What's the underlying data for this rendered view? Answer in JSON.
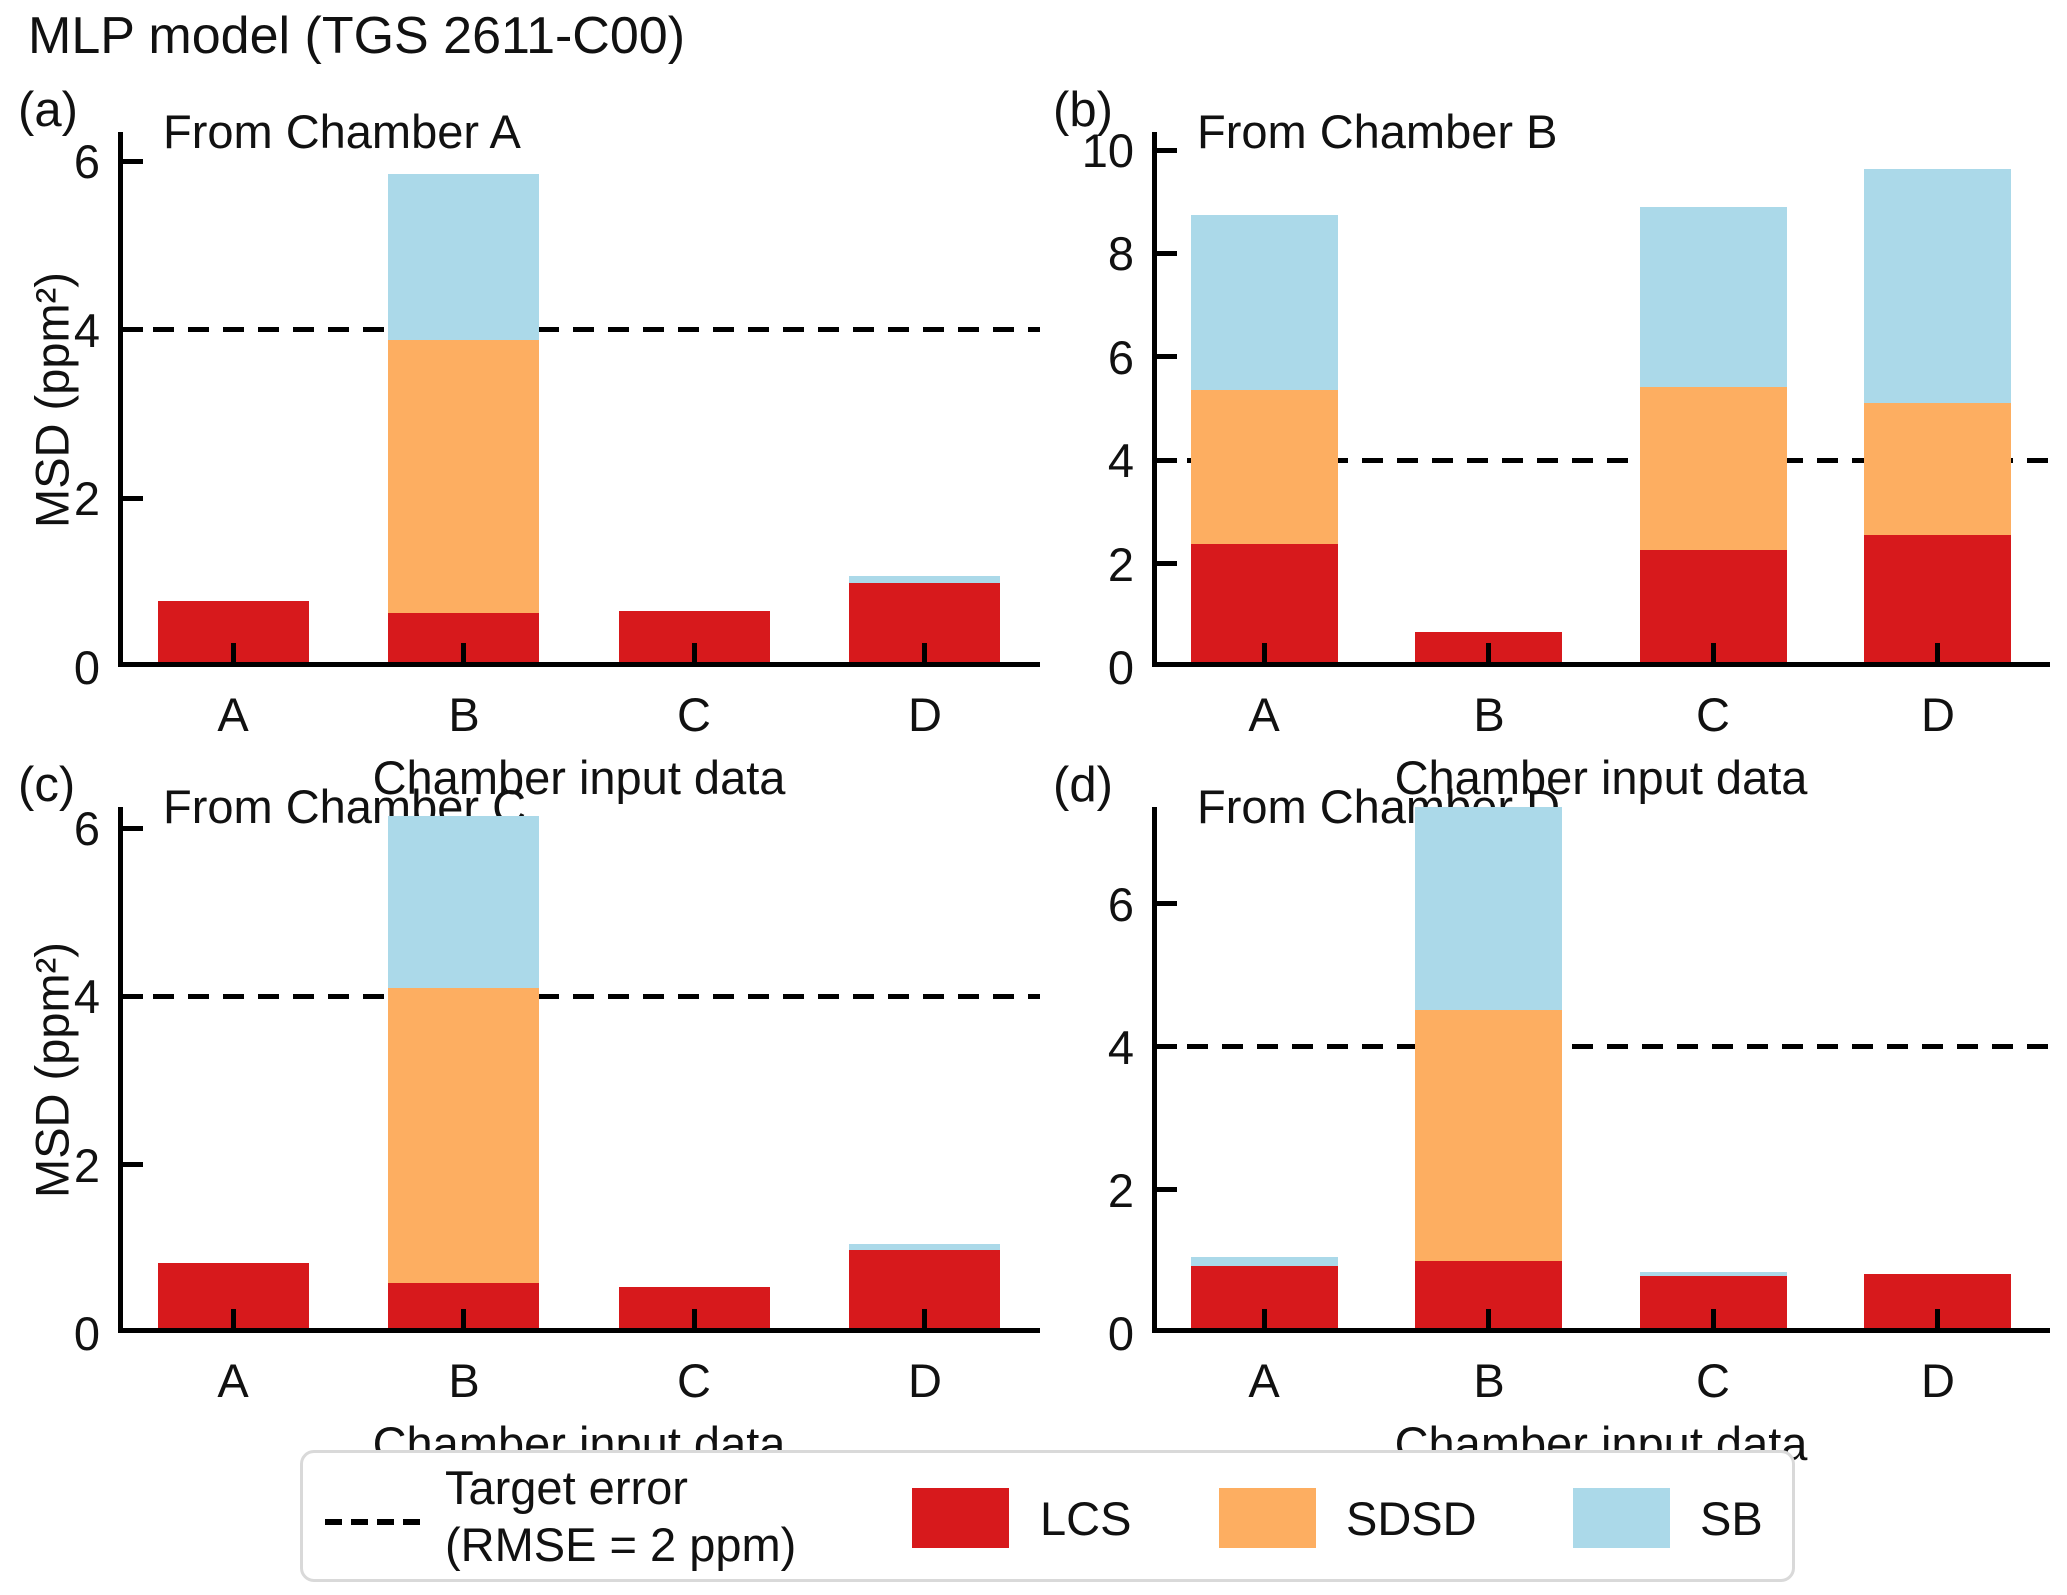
{
  "figure": {
    "title": "MLP model (TGS 2611-C00)"
  },
  "legend": {
    "target_label_line1": "Target error",
    "target_label_line2": "(RMSE = 2 ppm)",
    "series": [
      {
        "name": "LCS",
        "color": "#d7191c"
      },
      {
        "name": "SDSD",
        "color": "#fdae61"
      },
      {
        "name": "SB",
        "color": "#abd9e9"
      }
    ]
  },
  "target_line": {
    "value": 4,
    "style": "dashed",
    "color": "#000000",
    "label": "Target error (RMSE = 2 ppm)"
  },
  "chart_data": [
    {
      "type": "bar",
      "stacked": true,
      "panel_label": "(a)",
      "title": "From Chamber A",
      "categories": [
        "A",
        "B",
        "C",
        "D"
      ],
      "xlabel": "Chamber input data",
      "ylabel": "MSD (ppm²)",
      "ylim": [
        0,
        6.35
      ],
      "yticks": [
        0,
        2,
        4,
        6
      ],
      "target_line": 4,
      "grid": false,
      "series": [
        {
          "name": "LCS",
          "color": "#d7191c",
          "values": [
            0.78,
            0.64,
            0.66,
            1.0
          ]
        },
        {
          "name": "SDSD",
          "color": "#fdae61",
          "values": [
            0,
            3.24,
            0,
            0
          ]
        },
        {
          "name": "SB",
          "color": "#abd9e9",
          "values": [
            0,
            1.97,
            0,
            0.08
          ]
        }
      ]
    },
    {
      "type": "bar",
      "stacked": true,
      "panel_label": "(b)",
      "title": "From Chamber B",
      "categories": [
        "A",
        "B",
        "C",
        "D"
      ],
      "xlabel": "Chamber input data",
      "ylabel": "",
      "ylim": [
        0,
        10.35
      ],
      "yticks": [
        0,
        2,
        4,
        6,
        8,
        10
      ],
      "target_line": 4,
      "grid": false,
      "series": [
        {
          "name": "LCS",
          "color": "#d7191c",
          "values": [
            2.38,
            0.68,
            2.27,
            2.55
          ]
        },
        {
          "name": "SDSD",
          "color": "#fdae61",
          "values": [
            2.98,
            0,
            3.15,
            2.55
          ]
        },
        {
          "name": "SB",
          "color": "#abd9e9",
          "values": [
            3.39,
            0,
            3.48,
            4.52
          ]
        }
      ]
    },
    {
      "type": "bar",
      "stacked": true,
      "panel_label": "(c)",
      "title": "From Chamber C",
      "categories": [
        "A",
        "B",
        "C",
        "D"
      ],
      "xlabel": "Chamber input data",
      "ylabel": "MSD (ppm²)",
      "ylim": [
        0,
        6.25
      ],
      "yticks": [
        0,
        2,
        4,
        6
      ],
      "target_line": 4,
      "grid": false,
      "series": [
        {
          "name": "LCS",
          "color": "#d7191c",
          "values": [
            0.83,
            0.6,
            0.55,
            0.99
          ]
        },
        {
          "name": "SDSD",
          "color": "#fdae61",
          "values": [
            0,
            3.5,
            0,
            0
          ]
        },
        {
          "name": "SB",
          "color": "#abd9e9",
          "values": [
            0,
            2.04,
            0,
            0.07
          ]
        }
      ]
    },
    {
      "type": "bar",
      "stacked": true,
      "panel_label": "(d)",
      "title": "From Chamber D",
      "categories": [
        "A",
        "B",
        "C",
        "D"
      ],
      "xlabel": "Chamber input data",
      "ylabel": "",
      "ylim": [
        0,
        7.35
      ],
      "yticks": [
        0,
        2,
        4,
        6
      ],
      "target_line": 4,
      "grid": false,
      "series": [
        {
          "name": "LCS",
          "color": "#d7191c",
          "values": [
            0.93,
            1.0,
            0.79,
            0.82
          ]
        },
        {
          "name": "SDSD",
          "color": "#fdae61",
          "values": [
            0,
            3.52,
            0,
            0
          ]
        },
        {
          "name": "SB",
          "color": "#abd9e9",
          "values": [
            0.12,
            2.83,
            0.05,
            0
          ]
        }
      ]
    }
  ]
}
